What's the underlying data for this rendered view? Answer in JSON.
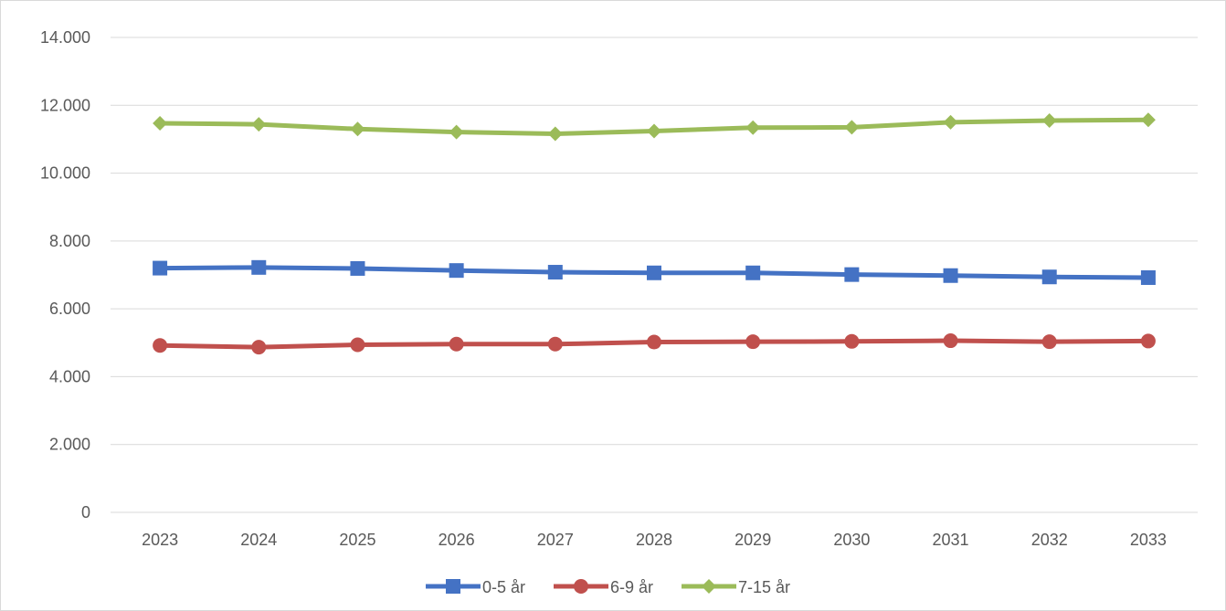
{
  "chart_data": {
    "type": "line",
    "title": "",
    "xlabel": "",
    "ylabel": "",
    "categories": [
      "2023",
      "2024",
      "2025",
      "2026",
      "2027",
      "2028",
      "2029",
      "2030",
      "2031",
      "2032",
      "2033"
    ],
    "ylim": [
      0,
      14000
    ],
    "yticks": [
      0,
      2000,
      4000,
      6000,
      8000,
      10000,
      12000,
      14000
    ],
    "ytick_labels": [
      "0",
      "2.000",
      "4.000",
      "6.000",
      "8.000",
      "10.000",
      "12.000",
      "14.000"
    ],
    "grid": true,
    "legend_position": "bottom",
    "series": [
      {
        "name": "0-5 år",
        "color": "#4472c4",
        "marker": "square",
        "values": [
          7200,
          7220,
          7190,
          7130,
          7080,
          7060,
          7060,
          7010,
          6980,
          6940,
          6920
        ]
      },
      {
        "name": "6-9 år",
        "color": "#c0504d",
        "marker": "circle",
        "values": [
          4920,
          4870,
          4940,
          4960,
          4960,
          5020,
          5030,
          5040,
          5060,
          5030,
          5050
        ]
      },
      {
        "name": "7-15 år",
        "color": "#9bbb59",
        "marker": "diamond",
        "values": [
          11470,
          11440,
          11300,
          11210,
          11160,
          11240,
          11340,
          11350,
          11500,
          11550,
          11570
        ]
      }
    ]
  }
}
